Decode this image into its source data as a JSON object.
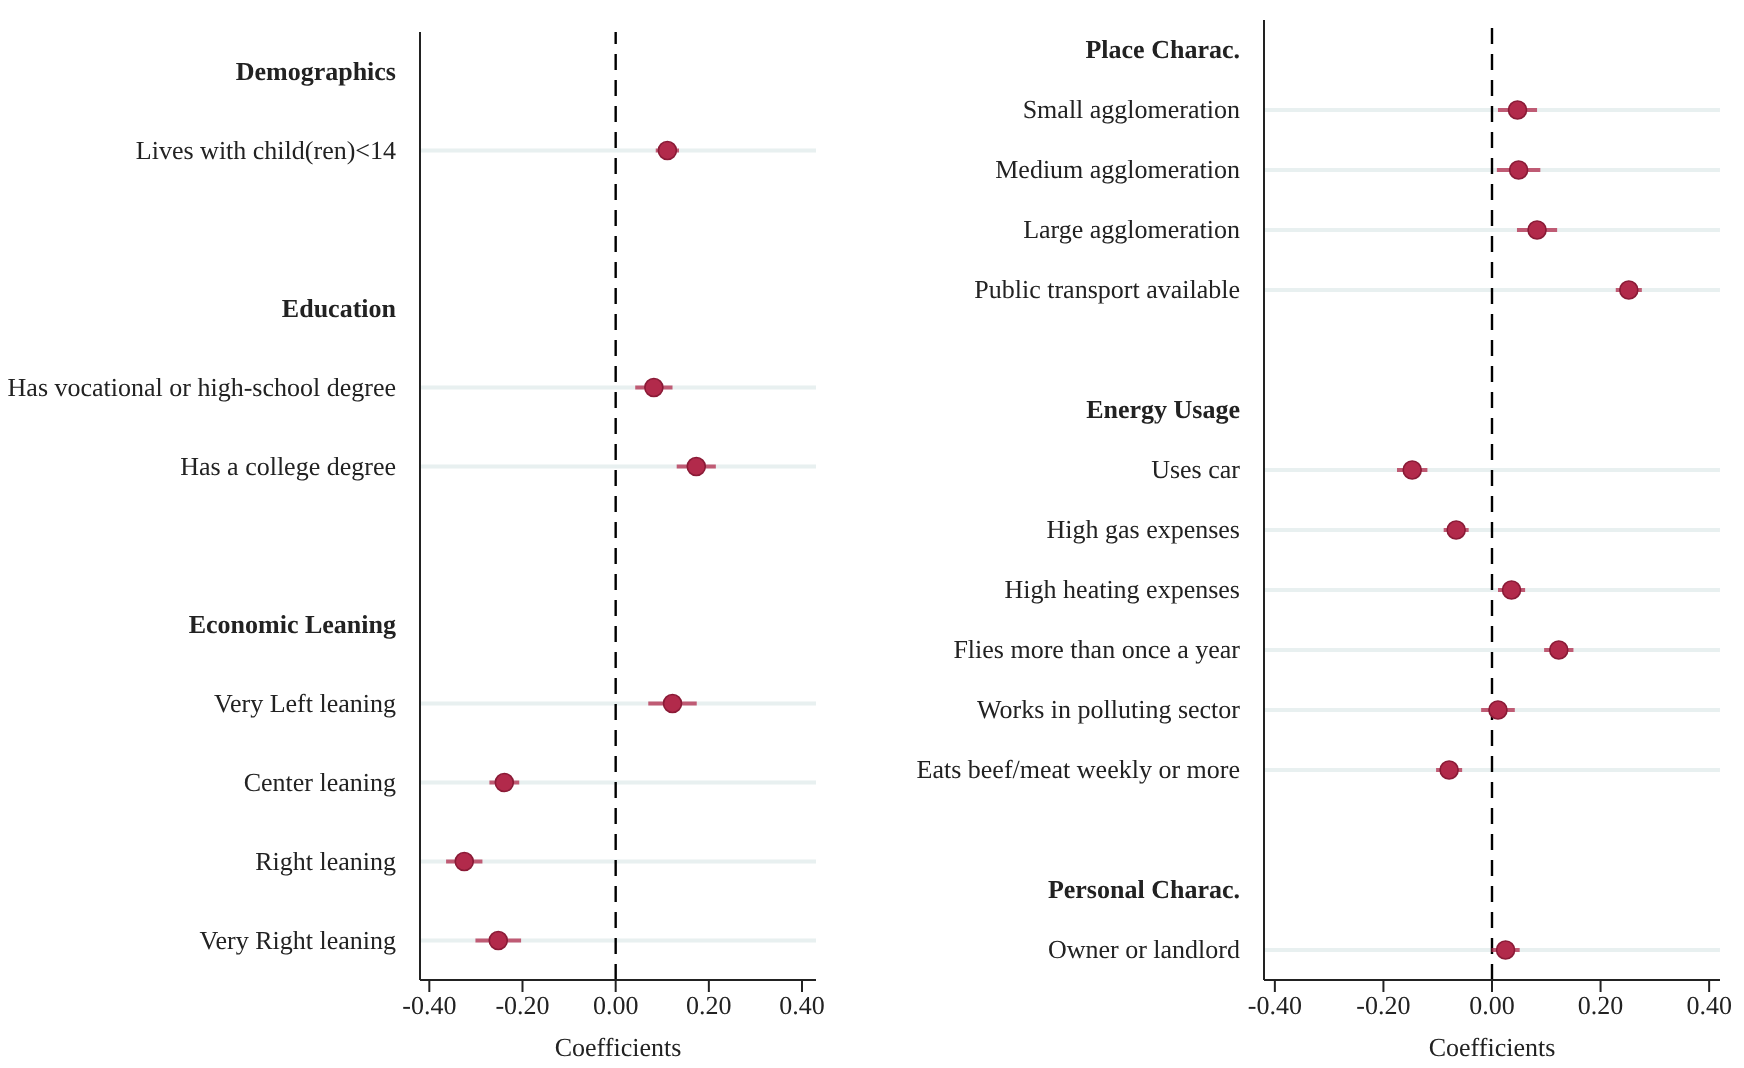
{
  "chart_data": [
    {
      "type": "scatter",
      "orientation": "horizontal",
      "xlabel": "Coefficients",
      "categories": [
        "Demographics",
        "Lives with child(ren)<14",
        null,
        "Education",
        "Has vocational or high-school degree",
        "Has a college degree",
        null,
        "Economic Leaning",
        "Very Left leaning",
        "Center leaning",
        "Right leaning",
        "Very Right leaning"
      ],
      "series": [
        {
          "color": "#b22a4b",
          "values": [
            null,
            0.111,
            null,
            null,
            0.082,
            0.173,
            null,
            null,
            0.122,
            -0.239,
            -0.325,
            -0.252
          ],
          "errors": [
            null,
            0.025,
            null,
            null,
            0.04,
            0.042,
            null,
            null,
            0.052,
            0.032,
            0.039,
            0.049
          ]
        }
      ],
      "xlim": [
        -0.42,
        0.43
      ],
      "xticks": [
        {
          "value": -0.4,
          "label": "-0.40"
        },
        {
          "value": -0.2,
          "label": "-0.20"
        },
        {
          "value": 0,
          "label": "0.00"
        },
        {
          "value": 0.2,
          "label": "0.20"
        },
        {
          "value": 0.4,
          "label": "0.40"
        }
      ],
      "ref_lines": [
        {
          "axis": "x",
          "value": 0,
          "color": "#000000",
          "line_style": "dashed"
        }
      ],
      "grid": "y",
      "marker": "circle",
      "legend": false
    },
    {
      "type": "scatter",
      "orientation": "horizontal",
      "xlabel": "Coefficients",
      "categories": [
        "Place Charac.",
        "Small agglomeration",
        "Medium agglomeration",
        "Large agglomeration",
        "Public transport available",
        null,
        "Energy Usage",
        "Uses car",
        "High gas expenses",
        "High heating expenses",
        "Flies more than once a year",
        "Works in polluting sector",
        "Eats beef/meat weekly or more",
        null,
        "Personal Charac.",
        "Owner or landlord"
      ],
      "series": [
        {
          "color": "#b22a4b",
          "values": [
            null,
            0.047,
            0.049,
            0.083,
            0.252,
            null,
            null,
            -0.147,
            -0.066,
            0.036,
            0.123,
            0.011,
            -0.079,
            null,
            null,
            0.025
          ],
          "errors": [
            null,
            0.036,
            0.04,
            0.037,
            0.024,
            null,
            null,
            0.028,
            0.023,
            0.025,
            0.027,
            0.031,
            0.024,
            null,
            null,
            0.026
          ]
        }
      ],
      "xlim": [
        -0.42,
        0.42
      ],
      "xticks": [
        {
          "value": -0.4,
          "label": "-0.40"
        },
        {
          "value": -0.2,
          "label": "-0.20"
        },
        {
          "value": 0,
          "label": "0.00"
        },
        {
          "value": 0.2,
          "label": "0.20"
        },
        {
          "value": 0.4,
          "label": "0.40"
        }
      ],
      "ref_lines": [
        {
          "axis": "x",
          "value": 0,
          "color": "#000000",
          "line_style": "dashed"
        }
      ],
      "grid": "y",
      "marker": "circle",
      "legend": false
    }
  ]
}
